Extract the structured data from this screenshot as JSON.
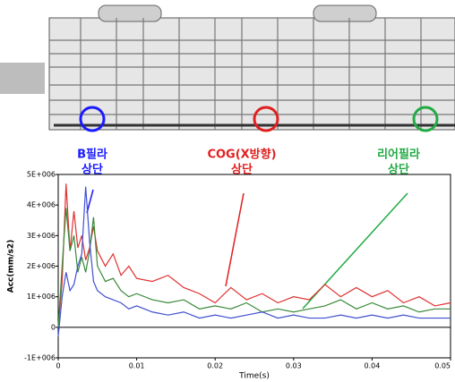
{
  "chart_data": {
    "type": "line",
    "annotations": [
      {
        "lines": [
          "B필라",
          "상단"
        ],
        "color": "#1a1aff"
      },
      {
        "lines": [
          "COG(X방향)",
          "상단"
        ],
        "color": "#e02020"
      },
      {
        "lines": [
          "리어필라",
          "상단"
        ],
        "color": "#22aa44"
      }
    ],
    "y_label": "Acc(mm/s2)",
    "x_label": "Time(s)",
    "xlim": [
      0,
      0.05
    ],
    "xticks": [
      0,
      0.01,
      0.02,
      0.03,
      0.04,
      0.05
    ],
    "ylim": [
      -1000000,
      5000000
    ],
    "yticks": [
      {
        "value": -1000000,
        "label": "-1E+006"
      },
      0,
      {
        "value": 1000000,
        "label": "1E+006"
      },
      {
        "value": 2000000,
        "label": "2E+006"
      },
      {
        "value": 3000000,
        "label": "3E+006"
      },
      {
        "value": 4000000,
        "label": "4E+006"
      },
      {
        "value": 5000000,
        "label": "5E+006"
      }
    ],
    "x": [
      0,
      0.0005,
      0.001,
      0.0015,
      0.002,
      0.0025,
      0.003,
      0.0035,
      0.004,
      0.0045,
      0.005,
      0.006,
      0.007,
      0.008,
      0.009,
      0.01,
      0.012,
      0.014,
      0.016,
      0.018,
      0.02,
      0.022,
      0.024,
      0.026,
      0.028,
      0.03,
      0.032,
      0.034,
      0.036,
      0.038,
      0.04,
      0.042,
      0.044,
      0.046,
      0.048,
      0.05
    ],
    "series": [
      {
        "color": "#e03030",
        "values": [
          0,
          1500000,
          4700000,
          2500000,
          3800000,
          2600000,
          3000000,
          2200000,
          2600000,
          3300000,
          2500000,
          2000000,
          2400000,
          1700000,
          2000000,
          1600000,
          1500000,
          1700000,
          1300000,
          1100000,
          800000,
          1300000,
          900000,
          1100000,
          800000,
          1000000,
          900000,
          1400000,
          1000000,
          1300000,
          1000000,
          1200000,
          800000,
          1000000,
          700000,
          800000
        ]
      },
      {
        "color": "#3a8a3a",
        "values": [
          0,
          2000000,
          3900000,
          2500000,
          3000000,
          1800000,
          2300000,
          1800000,
          2500000,
          3600000,
          2000000,
          1500000,
          1600000,
          1200000,
          1000000,
          1100000,
          900000,
          800000,
          900000,
          600000,
          700000,
          600000,
          800000,
          500000,
          600000,
          500000,
          600000,
          700000,
          900000,
          600000,
          800000,
          600000,
          700000,
          500000,
          600000,
          600000
        ]
      },
      {
        "color": "#4050d0",
        "values": [
          -300000,
          1000000,
          1800000,
          1200000,
          1400000,
          2000000,
          2400000,
          4600000,
          2800000,
          1500000,
          1200000,
          1000000,
          900000,
          800000,
          600000,
          700000,
          500000,
          400000,
          500000,
          300000,
          400000,
          300000,
          400000,
          500000,
          300000,
          400000,
          300000,
          300000,
          400000,
          300000,
          400000,
          300000,
          400000,
          300000,
          300000,
          300000
        ]
      }
    ]
  }
}
